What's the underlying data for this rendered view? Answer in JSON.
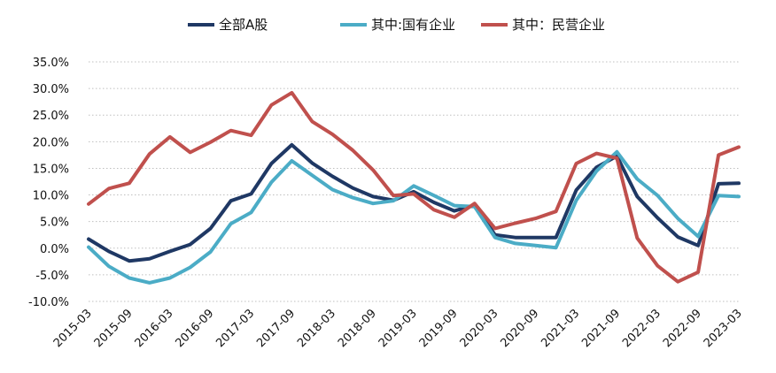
{
  "chart_data": {
    "type": "line",
    "title": "",
    "xlabel": "",
    "ylabel": "",
    "ylim": [
      -10,
      35
    ],
    "y_ticks": [
      "35.0%",
      "30.0%",
      "25.0%",
      "20.0%",
      "15.0%",
      "10.0%",
      "5.0%",
      "0.0%",
      "-5.0%",
      "-10.0%"
    ],
    "y_tick_values": [
      35,
      30,
      25,
      20,
      15,
      10,
      5,
      0,
      -5,
      -10
    ],
    "x": [
      "2015-03",
      "2015-06",
      "2015-09",
      "2015-12",
      "2016-03",
      "2016-06",
      "2016-09",
      "2016-12",
      "2017-03",
      "2017-06",
      "2017-09",
      "2017-12",
      "2018-03",
      "2018-06",
      "2018-09",
      "2018-12",
      "2019-03",
      "2019-06",
      "2019-09",
      "2019-12",
      "2020-03",
      "2020-06",
      "2020-09",
      "2020-12",
      "2021-03",
      "2021-06",
      "2021-09",
      "2021-12",
      "2022-03",
      "2022-06",
      "2022-09",
      "2022-12",
      "2023-03"
    ],
    "x_tick_labels": [
      "2015-03",
      "2015-09",
      "2016-03",
      "2016-09",
      "2017-03",
      "2017-09",
      "2018-03",
      "2018-09",
      "2019-03",
      "2019-09",
      "2020-03",
      "2020-09",
      "2021-03",
      "2021-09",
      "2022-03",
      "2022-09",
      "2023-03"
    ],
    "grid": true,
    "legend_position": "top",
    "series": [
      {
        "name": "全部A股",
        "color": "#1f3864",
        "values": [
          1.7,
          -0.6,
          -2.4,
          -2.0,
          -0.6,
          0.7,
          3.7,
          8.9,
          10.2,
          15.9,
          19.4,
          16.0,
          13.5,
          11.3,
          9.7,
          9.0,
          10.6,
          8.6,
          7.0,
          8.1,
          2.5,
          2.0,
          2.0,
          2.0,
          10.9,
          15.2,
          17.3,
          9.7,
          5.7,
          2.1,
          0.5,
          12.1,
          12.2
        ]
      },
      {
        "name": "其中:国有企业",
        "color": "#4bacc6",
        "values": [
          0.2,
          -3.4,
          -5.6,
          -6.5,
          -5.6,
          -3.6,
          -0.7,
          4.6,
          6.7,
          12.4,
          16.4,
          13.7,
          11.0,
          9.5,
          8.4,
          8.9,
          11.7,
          9.9,
          8.0,
          7.8,
          2.0,
          0.9,
          0.5,
          0.1,
          9.0,
          14.5,
          18.1,
          13.0,
          9.9,
          5.6,
          2.2,
          9.9,
          9.7
        ]
      },
      {
        "name": "其中：民营企业",
        "color": "#c0504d",
        "values": [
          8.3,
          11.2,
          12.2,
          17.7,
          20.9,
          18.0,
          19.9,
          22.1,
          21.2,
          26.9,
          29.2,
          23.8,
          21.4,
          18.4,
          14.7,
          9.9,
          10.2,
          7.2,
          5.8,
          8.4,
          3.7,
          4.7,
          5.6,
          6.9,
          15.9,
          17.8,
          16.9,
          1.9,
          -3.3,
          -6.3,
          -4.5,
          17.5,
          19.0
        ]
      }
    ]
  }
}
